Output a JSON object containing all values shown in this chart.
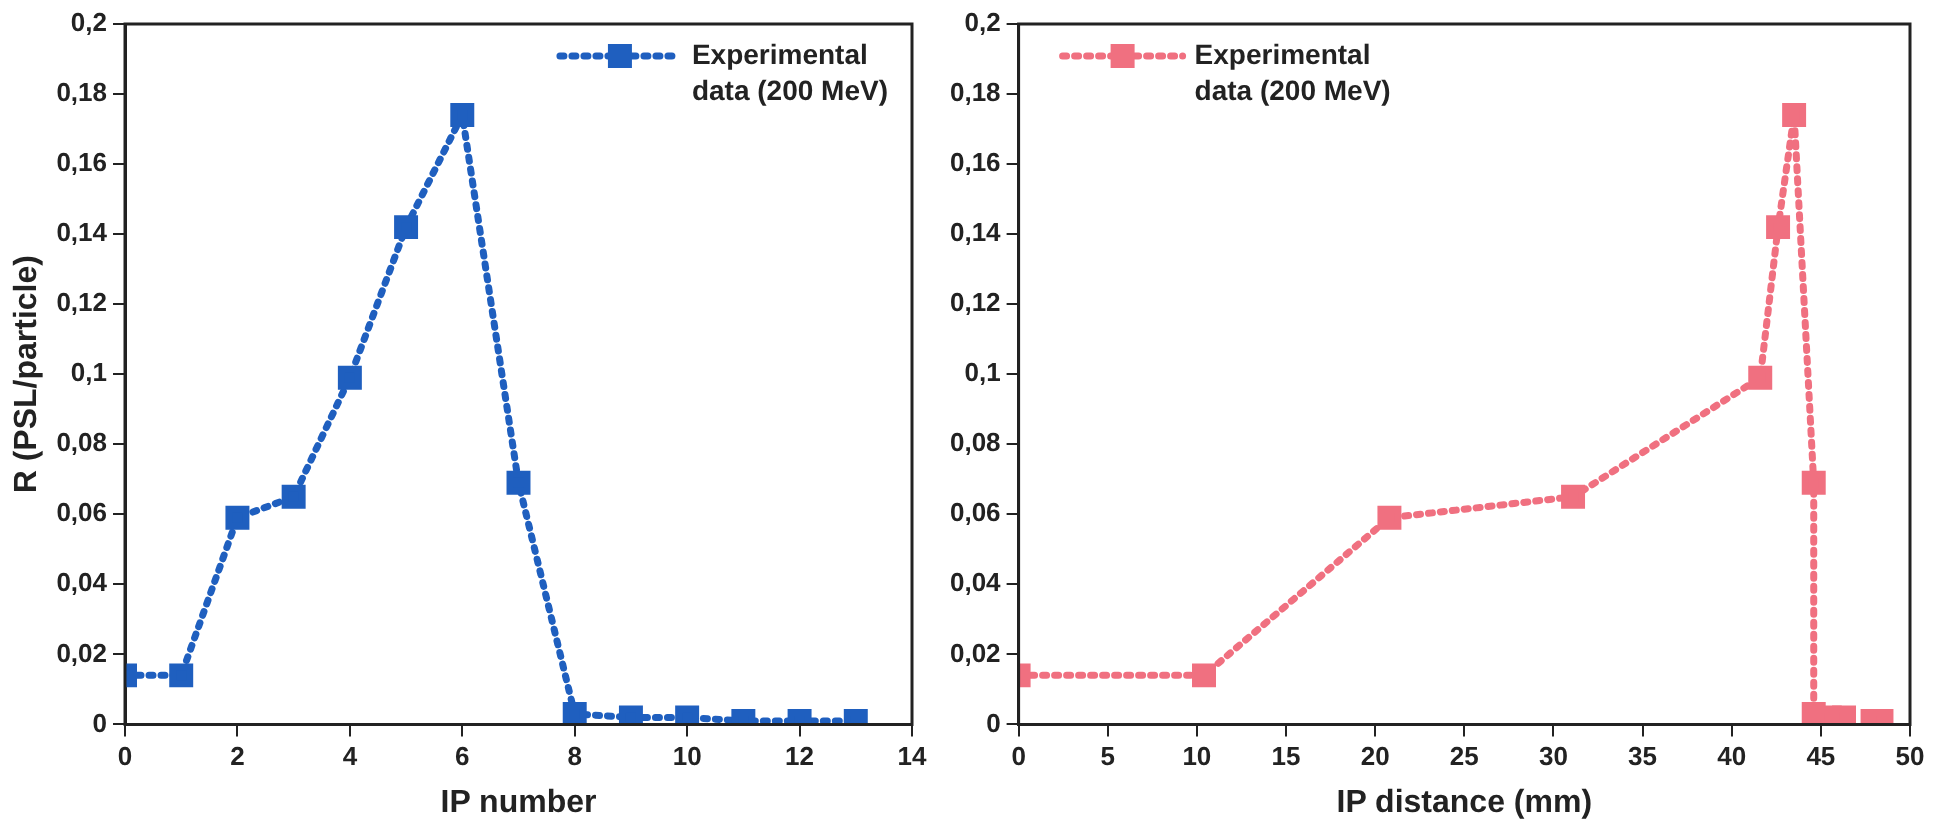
{
  "chart_data": [
    {
      "type": "line",
      "xlabel": "IP number",
      "ylabel": "R (PSL/particle)",
      "series": [
        {
          "name": "Experimental data (200 MeV)",
          "color": "#1f5fbf",
          "x": [
            0,
            1,
            2,
            3,
            4,
            5,
            6,
            7,
            8,
            9,
            10,
            11,
            12,
            13
          ],
          "values": [
            0.014,
            0.014,
            0.059,
            0.065,
            0.099,
            0.142,
            0.174,
            0.069,
            0.003,
            0.002,
            0.002,
            0.001,
            0.001,
            0.001
          ]
        }
      ],
      "xlim": [
        0,
        14
      ],
      "xticks": [
        0,
        2,
        4,
        6,
        8,
        10,
        12,
        14
      ],
      "ylim": [
        0,
        0.2
      ],
      "yticks": [
        {
          "value": 0,
          "label": "0"
        },
        {
          "value": 0.02,
          "label": "0,02"
        },
        {
          "value": 0.04,
          "label": "0,04"
        },
        {
          "value": 0.06,
          "label": "0,06"
        },
        {
          "value": 0.08,
          "label": "0,08"
        },
        {
          "value": 0.1,
          "label": "0,1"
        },
        {
          "value": 0.12,
          "label": "0,12"
        },
        {
          "value": 0.14,
          "label": "0,14"
        },
        {
          "value": 0.16,
          "label": "0,16"
        },
        {
          "value": 0.18,
          "label": "0,18"
        },
        {
          "value": 0.2,
          "label": "0,2"
        }
      ],
      "grid": false,
      "legend": "top right",
      "marker": "square",
      "line_style": "dotted"
    },
    {
      "type": "line",
      "xlabel": "IP distance (mm)",
      "series": [
        {
          "name": "Experimental data (200 MeV)",
          "color": "#f07080",
          "x": [
            0,
            10.4,
            20.8,
            31.1,
            41.6,
            42.6,
            43.5,
            44.6,
            44.6,
            45.5,
            46.3,
            47.1,
            47.9,
            48.4
          ],
          "values": [
            0.014,
            0.014,
            0.059,
            0.065,
            0.099,
            0.142,
            0.174,
            0.069,
            0.003,
            0.002,
            0.002,
            null,
            0.001,
            0.001
          ]
        }
      ],
      "xlim": [
        0,
        50
      ],
      "xticks": [
        0,
        5,
        10,
        15,
        20,
        25,
        30,
        35,
        40,
        45,
        50
      ],
      "ylim": [
        0,
        0.2
      ],
      "yticks": [
        {
          "value": 0,
          "label": "0"
        },
        {
          "value": 0.02,
          "label": "0,02"
        },
        {
          "value": 0.04,
          "label": "0,04"
        },
        {
          "value": 0.06,
          "label": "0,06"
        },
        {
          "value": 0.08,
          "label": "0,08"
        },
        {
          "value": 0.1,
          "label": "0,1"
        },
        {
          "value": 0.12,
          "label": "0,12"
        },
        {
          "value": 0.14,
          "label": "0,14"
        },
        {
          "value": 0.16,
          "label": "0,16"
        },
        {
          "value": 0.18,
          "label": "0,18"
        },
        {
          "value": 0.2,
          "label": "0,2"
        }
      ],
      "grid": false,
      "legend": "top left",
      "marker": "square",
      "line_style": "dotted"
    }
  ]
}
